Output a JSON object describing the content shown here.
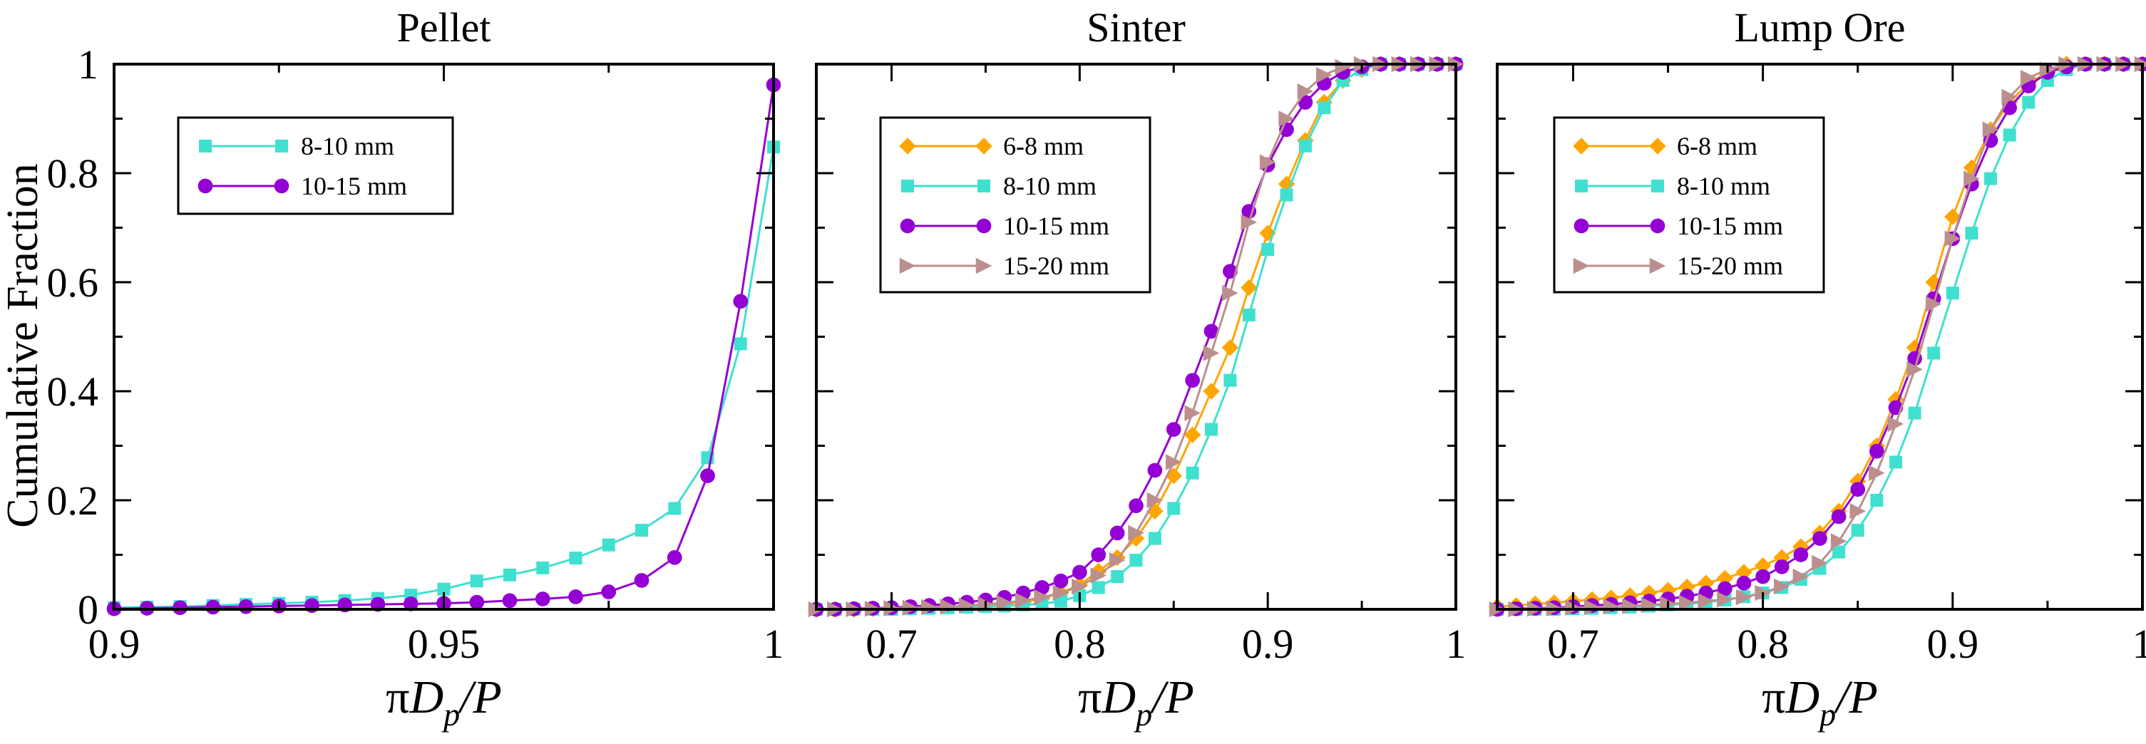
{
  "chart_data": [
    {
      "type": "line",
      "title": "Pellet",
      "xlabel": "πD_p/P",
      "ylabel": "Cumulative Fraction",
      "xlim": [
        0.9,
        1.0
      ],
      "ylim": [
        0,
        1
      ],
      "xticks": [
        "0.9",
        "0.95",
        "1"
      ],
      "yticks": [
        "0",
        "0.2",
        "0.4",
        "0.6",
        "0.8",
        "1"
      ],
      "legend_position": "top-left",
      "series": [
        {
          "name": "8-10 mm",
          "color": "#40E0D0",
          "marker": "square",
          "x": [
            0.9,
            0.905,
            0.91,
            0.915,
            0.92,
            0.925,
            0.93,
            0.935,
            0.94,
            0.945,
            0.95,
            0.955,
            0.96,
            0.965,
            0.97,
            0.975,
            0.98,
            0.985,
            0.99,
            0.995,
            1.0
          ],
          "y": [
            0.003,
            0.004,
            0.005,
            0.007,
            0.009,
            0.011,
            0.013,
            0.016,
            0.02,
            0.026,
            0.037,
            0.052,
            0.063,
            0.076,
            0.094,
            0.118,
            0.145,
            0.185,
            0.278,
            0.487,
            0.848
          ]
        },
        {
          "name": "10-15 mm",
          "color": "#9400D3",
          "marker": "circle",
          "x": [
            0.9,
            0.905,
            0.91,
            0.915,
            0.92,
            0.925,
            0.93,
            0.935,
            0.94,
            0.945,
            0.95,
            0.955,
            0.96,
            0.965,
            0.97,
            0.975,
            0.98,
            0.985,
            0.99,
            0.995,
            1.0
          ],
          "y": [
            0.001,
            0.002,
            0.003,
            0.004,
            0.005,
            0.006,
            0.007,
            0.008,
            0.009,
            0.01,
            0.011,
            0.013,
            0.016,
            0.019,
            0.023,
            0.032,
            0.053,
            0.095,
            0.245,
            0.565,
            0.962
          ]
        }
      ]
    },
    {
      "type": "line",
      "title": "Sinter",
      "xlabel": "πD_p/P",
      "xlim": [
        0.66,
        1.0
      ],
      "ylim": [
        0,
        1
      ],
      "xticks": [
        "0.7",
        "0.8",
        "0.9",
        "1"
      ],
      "legend_position": "top-left",
      "series": [
        {
          "name": "6-8 mm",
          "color": "#FFA500",
          "marker": "diamond",
          "x": [
            0.66,
            0.67,
            0.68,
            0.69,
            0.7,
            0.71,
            0.72,
            0.73,
            0.74,
            0.75,
            0.76,
            0.77,
            0.78,
            0.79,
            0.8,
            0.81,
            0.82,
            0.83,
            0.84,
            0.85,
            0.86,
            0.87,
            0.88,
            0.89,
            0.9,
            0.91,
            0.92,
            0.93,
            0.94,
            0.95,
            0.96,
            0.97,
            0.98,
            0.99,
            1.0
          ],
          "y": [
            0.0,
            0.0,
            0.0,
            0.001,
            0.002,
            0.003,
            0.004,
            0.005,
            0.006,
            0.008,
            0.01,
            0.013,
            0.02,
            0.03,
            0.045,
            0.07,
            0.095,
            0.13,
            0.18,
            0.245,
            0.32,
            0.4,
            0.48,
            0.59,
            0.69,
            0.78,
            0.86,
            0.93,
            0.97,
            0.99,
            1.0,
            1.0,
            1.0,
            1.0,
            1.0
          ]
        },
        {
          "name": "8-10 mm",
          "color": "#40E0D0",
          "marker": "square",
          "x": [
            0.66,
            0.67,
            0.68,
            0.69,
            0.7,
            0.71,
            0.72,
            0.73,
            0.74,
            0.75,
            0.76,
            0.77,
            0.78,
            0.79,
            0.8,
            0.81,
            0.82,
            0.83,
            0.84,
            0.85,
            0.86,
            0.87,
            0.88,
            0.89,
            0.9,
            0.91,
            0.92,
            0.93,
            0.94,
            0.95,
            0.96,
            0.97,
            0.98,
            0.99,
            1.0
          ],
          "y": [
            0.0,
            0.0,
            0.0,
            0.0,
            0.0,
            0.001,
            0.002,
            0.003,
            0.004,
            0.005,
            0.006,
            0.008,
            0.01,
            0.015,
            0.025,
            0.04,
            0.06,
            0.09,
            0.13,
            0.185,
            0.25,
            0.33,
            0.42,
            0.54,
            0.66,
            0.76,
            0.85,
            0.92,
            0.97,
            0.99,
            1.0,
            1.0,
            1.0,
            1.0,
            1.0
          ]
        },
        {
          "name": "10-15 mm",
          "color": "#9400D3",
          "marker": "circle",
          "x": [
            0.66,
            0.67,
            0.68,
            0.69,
            0.7,
            0.71,
            0.72,
            0.73,
            0.74,
            0.75,
            0.76,
            0.77,
            0.78,
            0.79,
            0.8,
            0.81,
            0.82,
            0.83,
            0.84,
            0.85,
            0.86,
            0.87,
            0.88,
            0.89,
            0.9,
            0.91,
            0.92,
            0.93,
            0.94,
            0.95,
            0.96,
            0.97,
            0.98,
            0.99,
            1.0
          ],
          "y": [
            0.0,
            0.0,
            0.001,
            0.002,
            0.003,
            0.005,
            0.007,
            0.01,
            0.013,
            0.017,
            0.022,
            0.03,
            0.04,
            0.052,
            0.068,
            0.1,
            0.14,
            0.19,
            0.255,
            0.33,
            0.42,
            0.51,
            0.62,
            0.73,
            0.815,
            0.88,
            0.93,
            0.965,
            0.985,
            0.995,
            1.0,
            1.0,
            1.0,
            1.0,
            1.0
          ]
        },
        {
          "name": "15-20 mm",
          "color": "#BC8F8F",
          "marker": "triangle-right",
          "x": [
            0.66,
            0.67,
            0.68,
            0.69,
            0.7,
            0.71,
            0.72,
            0.73,
            0.74,
            0.75,
            0.76,
            0.77,
            0.78,
            0.79,
            0.8,
            0.81,
            0.82,
            0.83,
            0.84,
            0.85,
            0.86,
            0.87,
            0.88,
            0.89,
            0.9,
            0.91,
            0.92,
            0.93,
            0.94,
            0.95,
            0.96,
            0.97,
            0.98,
            0.99,
            1.0
          ],
          "y": [
            0.0,
            0.0,
            0.0,
            0.001,
            0.002,
            0.003,
            0.004,
            0.005,
            0.007,
            0.009,
            0.012,
            0.016,
            0.022,
            0.03,
            0.042,
            0.062,
            0.09,
            0.14,
            0.2,
            0.27,
            0.36,
            0.47,
            0.58,
            0.71,
            0.82,
            0.9,
            0.95,
            0.98,
            0.995,
            1.0,
            1.0,
            1.0,
            1.0,
            1.0,
            1.0
          ]
        }
      ]
    },
    {
      "type": "line",
      "title": "Lump Ore",
      "xlabel": "πD_p/P",
      "xlim": [
        0.66,
        1.0
      ],
      "ylim": [
        0,
        1
      ],
      "xticks": [
        "0.7",
        "0.8",
        "0.9",
        "1"
      ],
      "legend_position": "top-left",
      "series": [
        {
          "name": "6-8 mm",
          "color": "#FFA500",
          "marker": "diamond",
          "x": [
            0.66,
            0.67,
            0.68,
            0.69,
            0.7,
            0.71,
            0.72,
            0.73,
            0.74,
            0.75,
            0.76,
            0.77,
            0.78,
            0.79,
            0.8,
            0.81,
            0.82,
            0.83,
            0.84,
            0.85,
            0.86,
            0.87,
            0.88,
            0.89,
            0.9,
            0.91,
            0.92,
            0.93,
            0.94,
            0.95,
            0.96,
            0.97,
            0.98,
            0.99,
            1.0
          ],
          "y": [
            0.005,
            0.007,
            0.01,
            0.012,
            0.015,
            0.018,
            0.021,
            0.025,
            0.03,
            0.035,
            0.041,
            0.048,
            0.057,
            0.068,
            0.08,
            0.095,
            0.115,
            0.14,
            0.18,
            0.235,
            0.3,
            0.385,
            0.48,
            0.6,
            0.72,
            0.81,
            0.88,
            0.93,
            0.965,
            0.985,
            1.0,
            1.0,
            1.0,
            1.0,
            1.0
          ]
        },
        {
          "name": "8-10 mm",
          "color": "#40E0D0",
          "marker": "square",
          "x": [
            0.66,
            0.67,
            0.68,
            0.69,
            0.7,
            0.71,
            0.72,
            0.73,
            0.74,
            0.75,
            0.76,
            0.77,
            0.78,
            0.79,
            0.8,
            0.81,
            0.82,
            0.83,
            0.84,
            0.85,
            0.86,
            0.87,
            0.88,
            0.89,
            0.9,
            0.91,
            0.92,
            0.93,
            0.94,
            0.95,
            0.96,
            0.97,
            0.98,
            0.99,
            1.0
          ],
          "y": [
            0.0,
            0.0,
            0.0,
            0.0,
            0.001,
            0.002,
            0.003,
            0.004,
            0.006,
            0.008,
            0.01,
            0.013,
            0.017,
            0.023,
            0.03,
            0.04,
            0.055,
            0.075,
            0.105,
            0.145,
            0.2,
            0.27,
            0.36,
            0.47,
            0.58,
            0.69,
            0.79,
            0.87,
            0.93,
            0.97,
            0.99,
            1.0,
            1.0,
            1.0,
            1.0
          ]
        },
        {
          "name": "10-15 mm",
          "color": "#9400D3",
          "marker": "circle",
          "x": [
            0.66,
            0.67,
            0.68,
            0.69,
            0.7,
            0.71,
            0.72,
            0.73,
            0.74,
            0.75,
            0.76,
            0.77,
            0.78,
            0.79,
            0.8,
            0.81,
            0.82,
            0.83,
            0.84,
            0.85,
            0.86,
            0.87,
            0.88,
            0.89,
            0.9,
            0.91,
            0.92,
            0.93,
            0.94,
            0.95,
            0.96,
            0.97,
            0.98,
            0.99,
            1.0
          ],
          "y": [
            0.0,
            0.001,
            0.002,
            0.003,
            0.005,
            0.007,
            0.009,
            0.012,
            0.015,
            0.019,
            0.024,
            0.03,
            0.038,
            0.048,
            0.06,
            0.078,
            0.1,
            0.13,
            0.17,
            0.22,
            0.29,
            0.37,
            0.46,
            0.57,
            0.68,
            0.78,
            0.86,
            0.92,
            0.96,
            0.985,
            0.995,
            1.0,
            1.0,
            1.0,
            1.0
          ]
        },
        {
          "name": "15-20 mm",
          "color": "#BC8F8F",
          "marker": "triangle-right",
          "x": [
            0.66,
            0.67,
            0.68,
            0.69,
            0.7,
            0.71,
            0.72,
            0.73,
            0.74,
            0.75,
            0.76,
            0.77,
            0.78,
            0.79,
            0.8,
            0.81,
            0.82,
            0.83,
            0.84,
            0.85,
            0.86,
            0.87,
            0.88,
            0.89,
            0.9,
            0.91,
            0.92,
            0.93,
            0.94,
            0.95,
            0.96,
            0.97,
            0.98,
            0.99,
            1.0
          ],
          "y": [
            0.0,
            0.0,
            0.001,
            0.002,
            0.003,
            0.004,
            0.005,
            0.006,
            0.008,
            0.01,
            0.012,
            0.015,
            0.018,
            0.022,
            0.03,
            0.042,
            0.06,
            0.085,
            0.125,
            0.18,
            0.25,
            0.34,
            0.44,
            0.56,
            0.68,
            0.79,
            0.88,
            0.94,
            0.975,
            0.99,
            1.0,
            1.0,
            1.0,
            1.0,
            1.0
          ]
        }
      ]
    }
  ]
}
